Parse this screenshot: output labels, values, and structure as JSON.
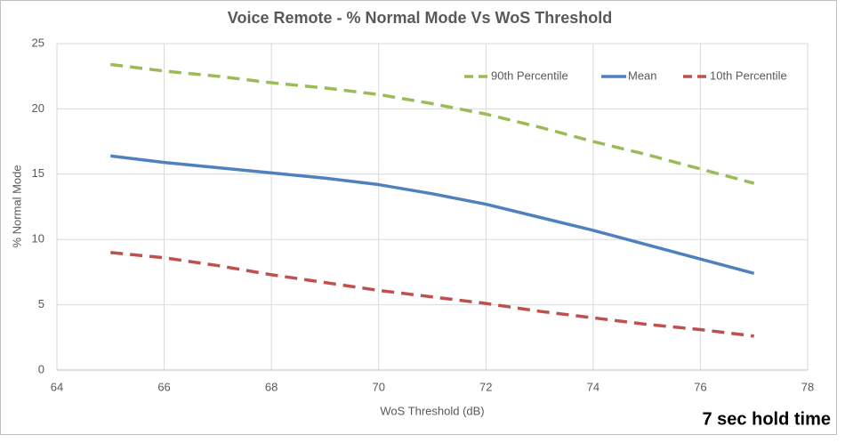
{
  "chart_data": {
    "type": "line",
    "title": "Voice Remote - % Normal Mode Vs WoS Threshold",
    "x_label": "WoS Threshold (dB)",
    "y_label": "% Normal Mode",
    "annotation": "7 sec hold time",
    "x": [
      65,
      66,
      67,
      68,
      69,
      70,
      71,
      72,
      73,
      74,
      75,
      76,
      77
    ],
    "series": [
      {
        "name": "90th Percentile",
        "color": "#9bbb59",
        "dashed": true,
        "values": [
          23.4,
          22.9,
          22.5,
          22.0,
          21.6,
          21.1,
          20.4,
          19.6,
          18.6,
          17.5,
          16.5,
          15.4,
          14.3
        ]
      },
      {
        "name": "Mean",
        "color": "#4f81bd",
        "dashed": false,
        "values": [
          16.4,
          15.9,
          15.5,
          15.1,
          14.7,
          14.2,
          13.5,
          12.7,
          11.7,
          10.7,
          9.6,
          8.5,
          7.4
        ]
      },
      {
        "name": "10th Percentile",
        "color": "#c0504d",
        "dashed": true,
        "values": [
          9.0,
          8.6,
          8.0,
          7.3,
          6.7,
          6.1,
          5.6,
          5.1,
          4.5,
          4.0,
          3.5,
          3.1,
          2.6
        ]
      }
    ],
    "xlim": [
      64,
      78
    ],
    "xticks": [
      64,
      66,
      68,
      70,
      72,
      74,
      76,
      78
    ],
    "ylim": [
      0,
      25
    ],
    "yticks": [
      0,
      5,
      10,
      15,
      20,
      25
    ],
    "grid": true,
    "legend": "top-right"
  }
}
